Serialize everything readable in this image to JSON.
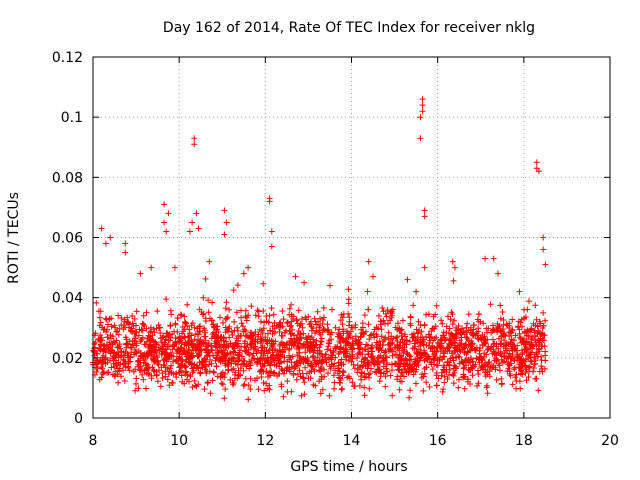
{
  "chart_data": {
    "type": "scatter",
    "title": "Day 162 of 2014, Rate Of TEC Index for receiver nklg",
    "xlabel": "GPS time / hours",
    "ylabel": "ROTI / TECUs",
    "xlim": [
      8,
      20
    ],
    "ylim": [
      0,
      0.12
    ],
    "xticks": [
      8,
      10,
      12,
      14,
      16,
      18,
      20
    ],
    "yticks": [
      0,
      0.02,
      0.04,
      0.06,
      0.08,
      0.1,
      0.12
    ],
    "xtick_labels": [
      "8",
      "10",
      "12",
      "14",
      "16",
      "18",
      "20"
    ],
    "ytick_labels": [
      "0",
      "0.02",
      "0.04",
      "0.06",
      "0.08",
      "0.1",
      "0.12"
    ],
    "grid": true,
    "marker": "+",
    "color": "#ff0000",
    "series": [
      {
        "name": "ROTI",
        "x_range": [
          8.0,
          18.5
        ],
        "typical_range": [
          0.005,
          0.035
        ],
        "points": [
          [
            8.2,
            0.063
          ],
          [
            8.3,
            0.058
          ],
          [
            8.4,
            0.06
          ],
          [
            8.75,
            0.058
          ],
          [
            8.75,
            0.055
          ],
          [
            9.1,
            0.048
          ],
          [
            9.35,
            0.05
          ],
          [
            9.65,
            0.071
          ],
          [
            9.65,
            0.065
          ],
          [
            9.7,
            0.062
          ],
          [
            9.75,
            0.068
          ],
          [
            9.9,
            0.05
          ],
          [
            10.25,
            0.062
          ],
          [
            10.3,
            0.065
          ],
          [
            10.35,
            0.093
          ],
          [
            10.35,
            0.091
          ],
          [
            10.4,
            0.068
          ],
          [
            10.45,
            0.063
          ],
          [
            10.7,
            0.052
          ],
          [
            11.05,
            0.069
          ],
          [
            11.05,
            0.061
          ],
          [
            11.1,
            0.065
          ],
          [
            11.5,
            0.048
          ],
          [
            11.6,
            0.05
          ],
          [
            12.1,
            0.073
          ],
          [
            12.1,
            0.072
          ],
          [
            12.15,
            0.062
          ],
          [
            12.15,
            0.057
          ],
          [
            12.7,
            0.047
          ],
          [
            12.9,
            0.045
          ],
          [
            13.5,
            0.044
          ],
          [
            14.4,
            0.052
          ],
          [
            14.5,
            0.047
          ],
          [
            15.3,
            0.046
          ],
          [
            15.5,
            0.042
          ],
          [
            15.6,
            0.093
          ],
          [
            15.6,
            0.1
          ],
          [
            15.65,
            0.106
          ],
          [
            15.65,
            0.104
          ],
          [
            15.65,
            0.102
          ],
          [
            15.7,
            0.069
          ],
          [
            15.7,
            0.067
          ],
          [
            15.7,
            0.05
          ],
          [
            16.35,
            0.052
          ],
          [
            16.4,
            0.05
          ],
          [
            17.1,
            0.053
          ],
          [
            17.3,
            0.053
          ],
          [
            17.4,
            0.048
          ],
          [
            17.9,
            0.042
          ],
          [
            18.3,
            0.085
          ],
          [
            18.3,
            0.083
          ],
          [
            18.35,
            0.082
          ],
          [
            18.45,
            0.06
          ],
          [
            18.45,
            0.056
          ],
          [
            18.5,
            0.051
          ]
        ]
      }
    ]
  }
}
